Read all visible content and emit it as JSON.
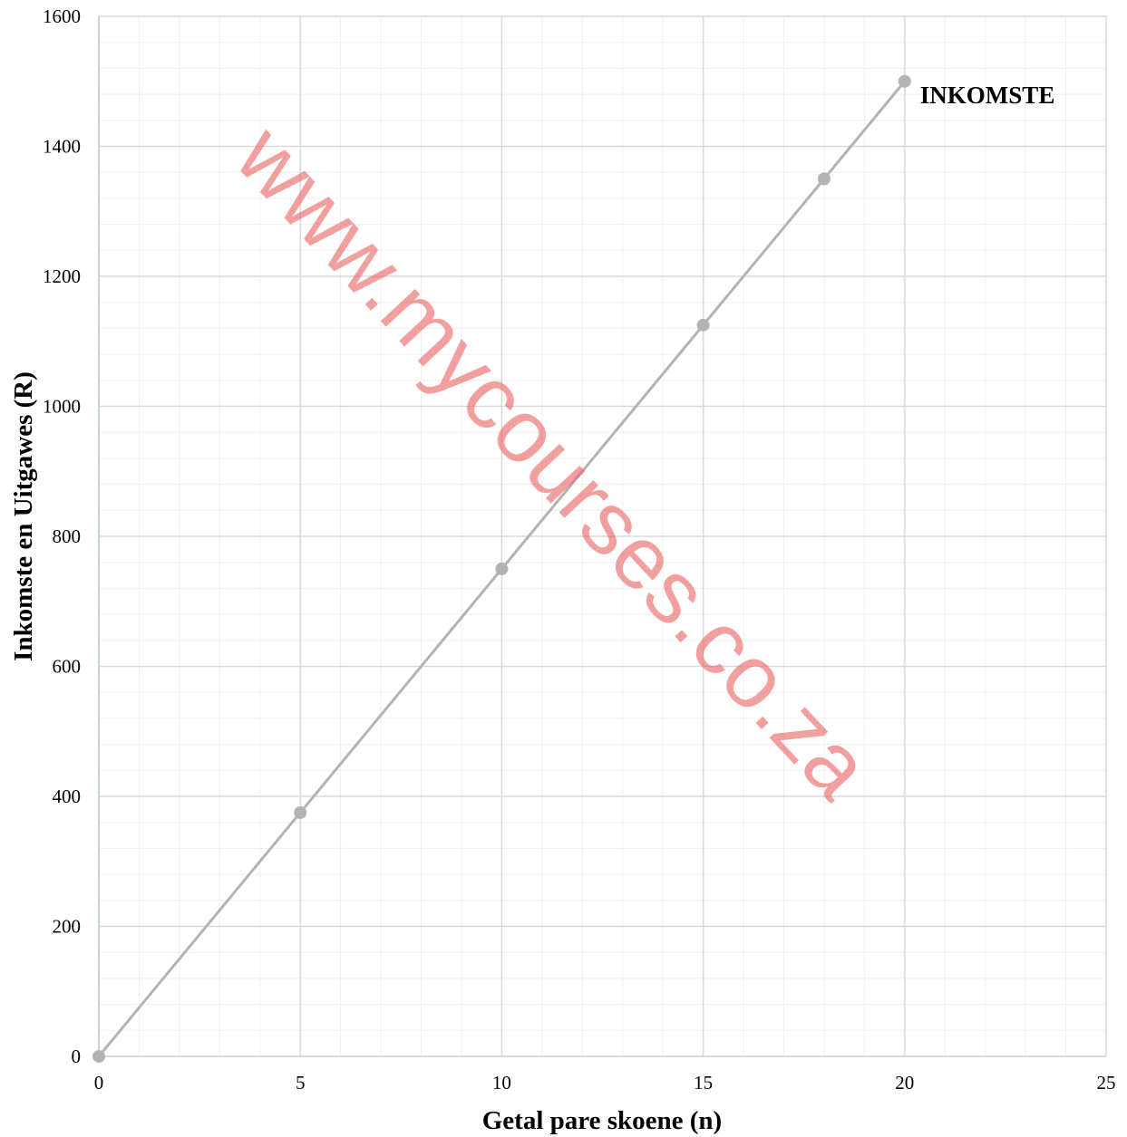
{
  "chart_data": {
    "type": "line",
    "xlabel": "Getal pare skoene (n)",
    "ylabel": "Inkomste en Uitgawes (R)",
    "xlim": [
      0,
      25
    ],
    "ylim": [
      0,
      1600
    ],
    "x_ticks": [
      "0",
      "5",
      "10",
      "15",
      "20",
      "25"
    ],
    "y_ticks": [
      "0",
      "200",
      "400",
      "600",
      "800",
      "1000",
      "1200",
      "1400",
      "1600"
    ],
    "grid": true,
    "series": [
      {
        "name": "INKOMSTE",
        "color": "#b3b3b3",
        "x": [
          0,
          5,
          10,
          15,
          18,
          20
        ],
        "y": [
          0,
          375,
          750,
          1125,
          1350,
          1500
        ]
      }
    ]
  },
  "watermark": {
    "text": "www.mycourses.co.za",
    "color": "#e86464"
  }
}
